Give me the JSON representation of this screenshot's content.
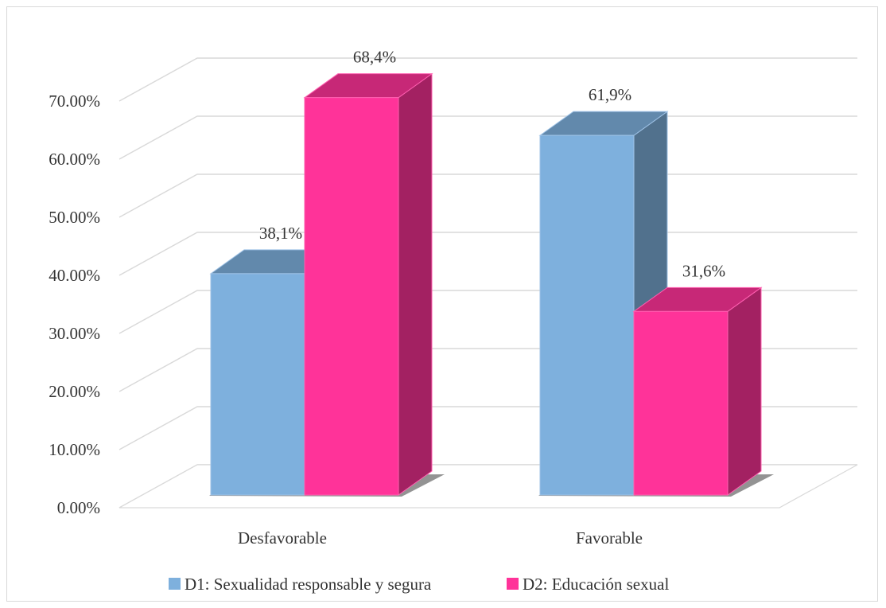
{
  "chart_data": {
    "type": "bar",
    "style": "3d-clustered-column",
    "categories": [
      "Desfavorable",
      "Favorable"
    ],
    "series": [
      {
        "name": "D1: Sexualidad responsable y segura",
        "values": [
          38.1,
          61.9
        ],
        "labels": [
          "38,1%",
          "61,9%"
        ],
        "color": "#7EB0DD"
      },
      {
        "name": "D2: Educación sexual",
        "values": [
          68.4,
          31.6
        ],
        "labels": [
          "68,4%",
          "31,6%"
        ],
        "color": "#FF3399"
      }
    ],
    "y_ticks": [
      "0.00%",
      "10.00%",
      "20.00%",
      "30.00%",
      "40.00%",
      "50.00%",
      "60.00%",
      "70.00%"
    ],
    "ylim": [
      0,
      70
    ],
    "grid": true,
    "legend_position": "bottom"
  }
}
